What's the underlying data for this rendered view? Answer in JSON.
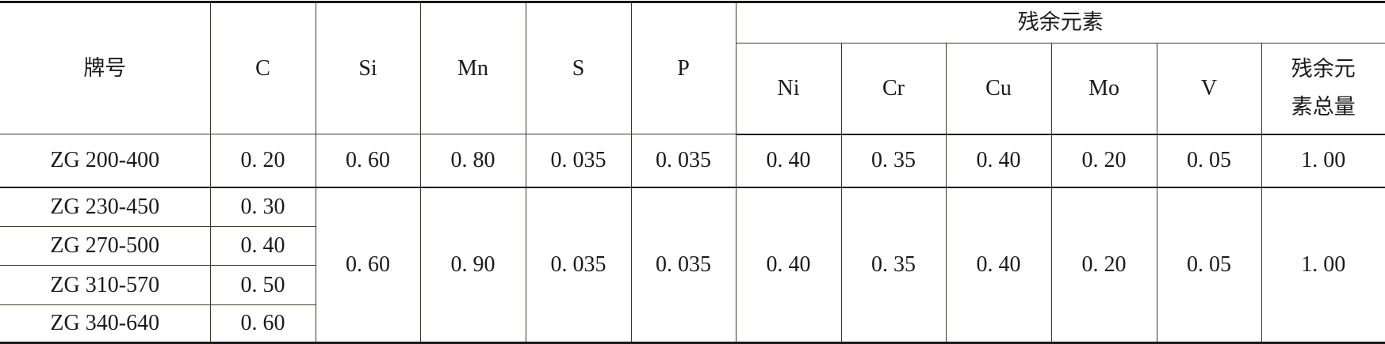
{
  "header": {
    "grade": "牌号",
    "residual_group": "残余元素",
    "columns": [
      "C",
      "Si",
      "Mn",
      "S",
      "P"
    ],
    "residual_columns": [
      "Ni",
      "Cr",
      "Cu",
      "Mo",
      "V"
    ],
    "residual_total_line1": "残余元",
    "residual_total_line2": "素总量"
  },
  "rows": [
    {
      "grade": "ZG 200-400",
      "C": "0. 20",
      "Si": "0. 60",
      "Mn": "0. 80",
      "S": "0. 035",
      "P": "0. 035",
      "Ni": "0. 40",
      "Cr": "0. 35",
      "Cu": "0. 40",
      "Mo": "0. 20",
      "V": "0. 05",
      "total": "1. 00"
    }
  ],
  "group": {
    "grades": [
      {
        "grade": "ZG 230-450",
        "C": "0. 30"
      },
      {
        "grade": "ZG 270-500",
        "C": "0. 40"
      },
      {
        "grade": "ZG 310-570",
        "C": "0. 50"
      },
      {
        "grade": "ZG 340-640",
        "C": "0. 60"
      }
    ],
    "Si": "0. 60",
    "Mn": "0. 90",
    "S": "0. 035",
    "P": "0. 035",
    "Ni": "0. 40",
    "Cr": "0. 35",
    "Cu": "0. 40",
    "Mo": "0. 20",
    "V": "0. 05",
    "total": "1. 00"
  }
}
